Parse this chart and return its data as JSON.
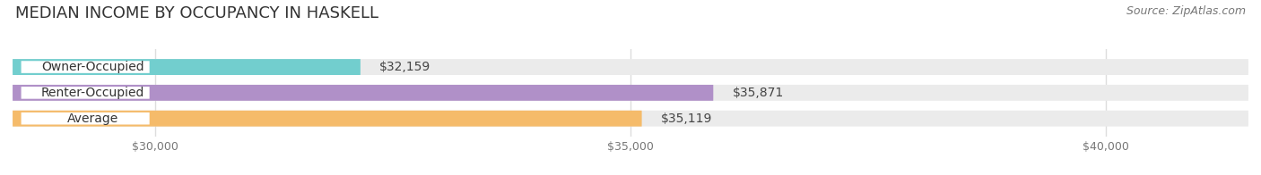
{
  "title": "MEDIAN INCOME BY OCCUPANCY IN HASKELL",
  "source": "Source: ZipAtlas.com",
  "categories": [
    "Owner-Occupied",
    "Renter-Occupied",
    "Average"
  ],
  "values": [
    32159,
    35871,
    35119
  ],
  "bar_colors": [
    "#72cece",
    "#b090c8",
    "#f5bb6a"
  ],
  "value_labels": [
    "$32,159",
    "$35,871",
    "$35,119"
  ],
  "xmin": 28500,
  "xlim_left": 28500,
  "xlim_right": 41500,
  "xticks": [
    30000,
    35000,
    40000
  ],
  "xticklabels": [
    "$30,000",
    "$35,000",
    "$40,000"
  ],
  "bar_height": 0.62,
  "background_color": "#ffffff",
  "bar_bg_color": "#ebebeb",
  "label_bg_color": "#ffffff",
  "title_fontsize": 13,
  "label_fontsize": 10,
  "value_fontsize": 10,
  "tick_fontsize": 9,
  "source_fontsize": 9
}
